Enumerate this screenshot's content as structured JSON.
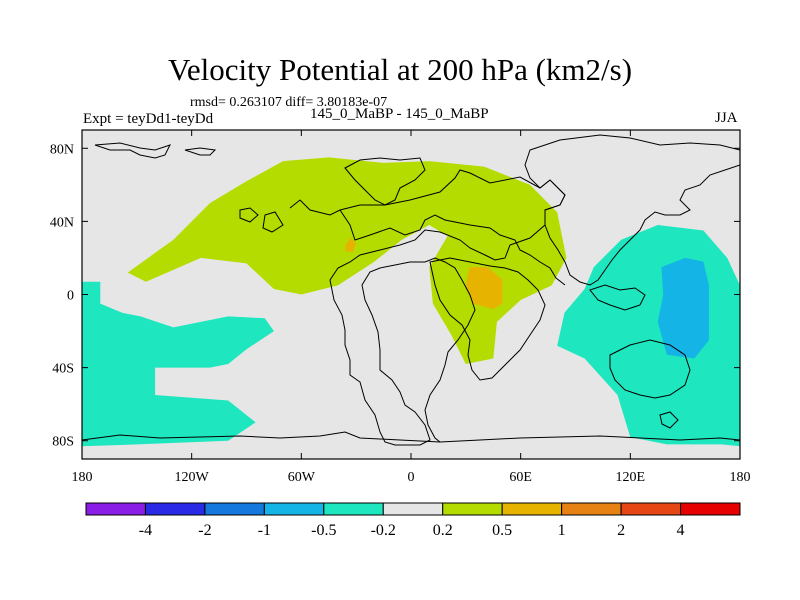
{
  "header": {
    "title": "Velocity Potential at 200 hPa (km2/s)",
    "stats": "rmsd= 0.263107 diff= 3.80183e-07",
    "left_label": "Expt = teyDd1-teyDd",
    "center_label": "145_0_MaBP - 145_0_MaBP",
    "right_label": "JJA"
  },
  "chart_data": {
    "type": "heatmap",
    "title": "Velocity Potential at 200 hPa (km2/s)",
    "xlabel": "",
    "ylabel": "",
    "xlim": [
      -180,
      180
    ],
    "ylim": [
      -90,
      90
    ],
    "x_ticks": [
      {
        "value": -180,
        "label": "180"
      },
      {
        "value": -120,
        "label": "120W"
      },
      {
        "value": -60,
        "label": "60W"
      },
      {
        "value": 0,
        "label": "0"
      },
      {
        "value": 60,
        "label": "60E"
      },
      {
        "value": 120,
        "label": "120E"
      },
      {
        "value": 180,
        "label": "180"
      }
    ],
    "y_ticks": [
      {
        "value": 80,
        "label": "80N"
      },
      {
        "value": 40,
        "label": "40N"
      },
      {
        "value": 0,
        "label": "0"
      },
      {
        "value": -40,
        "label": "40S"
      },
      {
        "value": -80,
        "label": "80S"
      }
    ],
    "colorbar": {
      "levels": [
        "-4",
        "-2",
        "-1",
        "-0.5",
        "-0.2",
        "0.2",
        "0.5",
        "1",
        "2",
        "4"
      ],
      "colors": [
        "#8a1ee6",
        "#2a2ae6",
        "#1478dc",
        "#14b4e6",
        "#1ee6be",
        "#e6e6e6",
        "#b4dc00",
        "#e6b400",
        "#e68214",
        "#e64614",
        "#e60000"
      ]
    },
    "regions": [
      {
        "name": "positive-north",
        "level_index": 6,
        "points": [
          [
            -155,
            12
          ],
          [
            -130,
            30
          ],
          [
            -110,
            50
          ],
          [
            -90,
            62
          ],
          [
            -70,
            73
          ],
          [
            -45,
            75
          ],
          [
            -15,
            72
          ],
          [
            10,
            73
          ],
          [
            40,
            70
          ],
          [
            65,
            60
          ],
          [
            80,
            45
          ],
          [
            85,
            20
          ],
          [
            77,
            5
          ],
          [
            60,
            -3
          ],
          [
            47,
            -15
          ],
          [
            45,
            -35
          ],
          [
            30,
            -38
          ],
          [
            22,
            -22
          ],
          [
            12,
            -5
          ],
          [
            10,
            15
          ],
          [
            20,
            32
          ],
          [
            10,
            38
          ],
          [
            -5,
            30
          ],
          [
            -20,
            18
          ],
          [
            -40,
            5
          ],
          [
            -60,
            0
          ],
          [
            -75,
            3
          ],
          [
            -90,
            17
          ],
          [
            -115,
            20
          ],
          [
            -145,
            7
          ]
        ]
      },
      {
        "name": "negative-east",
        "level_index": 4,
        "points": [
          [
            100,
            15
          ],
          [
            115,
            30
          ],
          [
            135,
            38
          ],
          [
            160,
            35
          ],
          [
            173,
            20
          ],
          [
            180,
            5
          ],
          [
            180,
            -83
          ],
          [
            170,
            -82
          ],
          [
            140,
            -82
          ],
          [
            120,
            -78
          ],
          [
            113,
            -55
          ],
          [
            95,
            -35
          ],
          [
            80,
            -28
          ],
          [
            84,
            -10
          ],
          [
            95,
            3
          ]
        ]
      },
      {
        "name": "negative-west",
        "level_index": 4,
        "points": [
          [
            -180,
            7
          ],
          [
            -170,
            7
          ],
          [
            -170,
            -5
          ],
          [
            -158,
            -10
          ],
          [
            -148,
            -12
          ],
          [
            -130,
            -18
          ],
          [
            -100,
            -12
          ],
          [
            -80,
            -13
          ],
          [
            -75,
            -20
          ],
          [
            -90,
            -30
          ],
          [
            -100,
            -38
          ],
          [
            -110,
            -40
          ],
          [
            -140,
            -40
          ],
          [
            -140,
            -55
          ],
          [
            -100,
            -58
          ],
          [
            -85,
            -70
          ],
          [
            -100,
            -80
          ],
          [
            -150,
            -82
          ],
          [
            -180,
            -83
          ]
        ]
      },
      {
        "name": "strong-negative",
        "level_index": 3,
        "points": [
          [
            137,
            15
          ],
          [
            150,
            20
          ],
          [
            160,
            18
          ],
          [
            163,
            5
          ],
          [
            163,
            -25
          ],
          [
            155,
            -35
          ],
          [
            140,
            -33
          ],
          [
            135,
            -15
          ],
          [
            138,
            0
          ]
        ]
      },
      {
        "name": "positive-center",
        "level_index": 7,
        "points": [
          [
            32,
            15
          ],
          [
            42,
            15
          ],
          [
            50,
            8
          ],
          [
            50,
            -5
          ],
          [
            45,
            -8
          ],
          [
            34,
            -5
          ],
          [
            30,
            5
          ]
        ]
      },
      {
        "name": "positive-small",
        "level_index": 7,
        "points": [
          [
            -36,
            27
          ],
          [
            -33,
            31
          ],
          [
            -30,
            28
          ],
          [
            -32,
            23
          ],
          [
            -36,
            24
          ]
        ]
      }
    ]
  }
}
